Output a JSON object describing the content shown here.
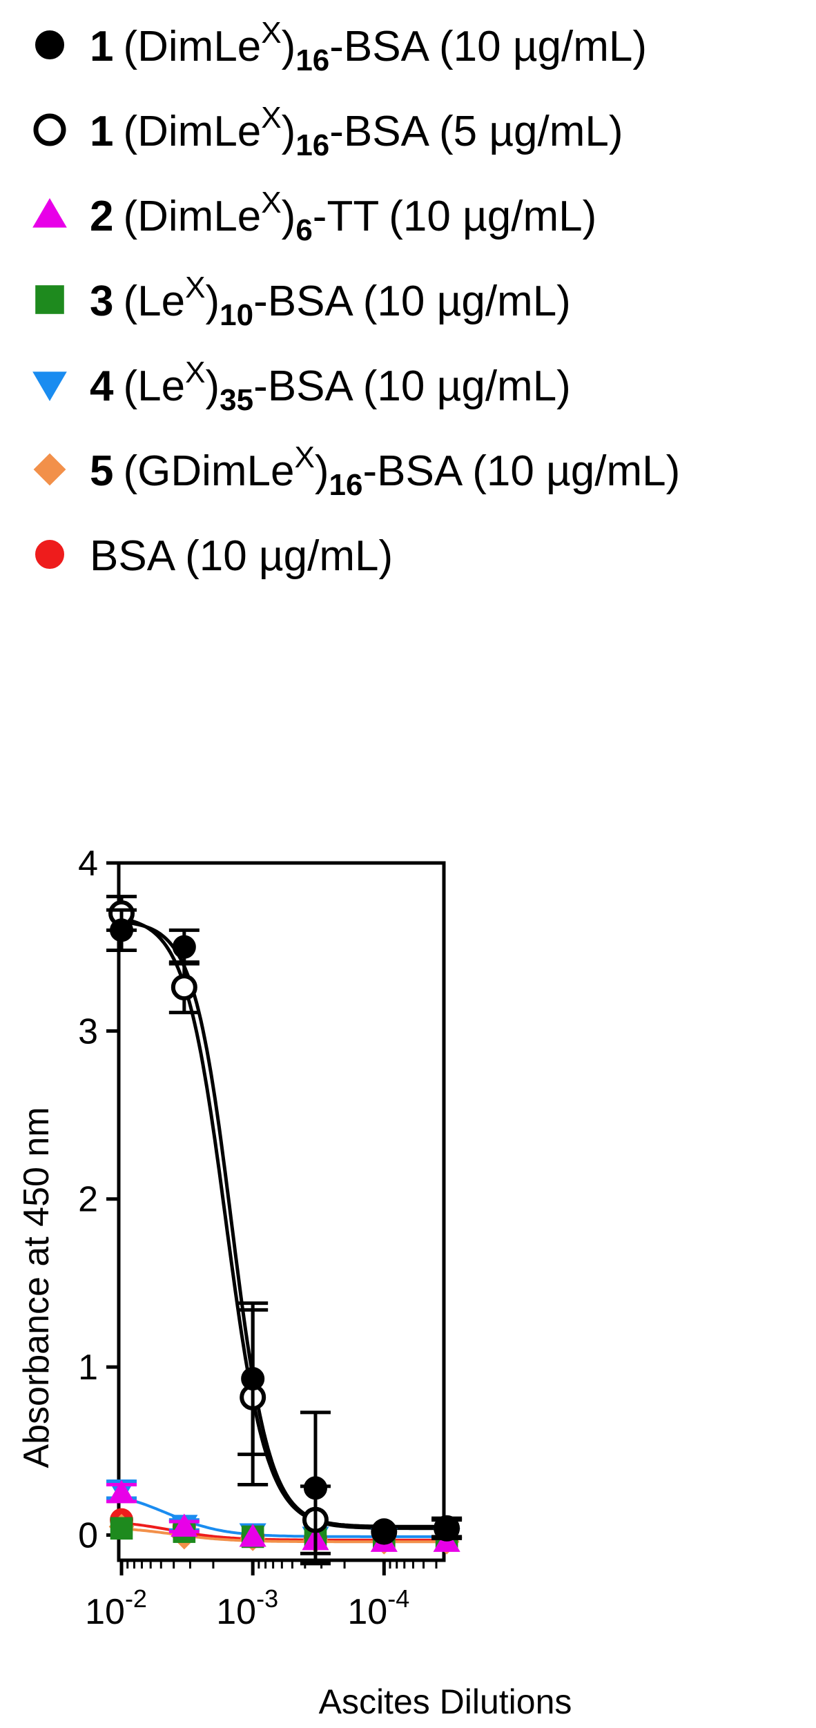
{
  "legend": [
    {
      "num": "1",
      "pre": "(DimLe",
      "sup": "X",
      "post": ")",
      "sub": "16",
      "tail": "-BSA",
      "conc": "(10 µg/mL)",
      "marker": "circle",
      "fill": "#000000",
      "stroke": "#000000"
    },
    {
      "num": "1",
      "pre": "(DimLe",
      "sup": "X",
      "post": ")",
      "sub": "16",
      "tail": "-BSA",
      "conc": "(5 µg/mL)",
      "marker": "circle",
      "fill": "#ffffff",
      "stroke": "#000000"
    },
    {
      "num": "2",
      "pre": "(DimLe",
      "sup": "X",
      "post": ")",
      "sub": "6",
      "tail": "-TT",
      "conc": "(10 µg/mL)",
      "marker": "triangle-up",
      "fill": "#e800e8",
      "stroke": "#e800e8"
    },
    {
      "num": "3",
      "pre": "(Le",
      "sup": "X",
      "post": ")",
      "sub": "10",
      "tail": "-BSA",
      "conc": "(10 µg/mL)",
      "marker": "square",
      "fill": "#1e8a1e",
      "stroke": "#1e8a1e"
    },
    {
      "num": "4",
      "pre": "(Le",
      "sup": "X",
      "post": ")",
      "sub": "35",
      "tail": "-BSA",
      "conc": "(10 µg/mL)",
      "marker": "triangle-down",
      "fill": "#1a8cf0",
      "stroke": "#1a8cf0"
    },
    {
      "num": "5",
      "pre": "(GDimLe",
      "sup": "X",
      "post": ")",
      "sub": "16",
      "tail": "-BSA",
      "conc": "(10 µg/mL)",
      "marker": "diamond",
      "fill": "#f2904a",
      "stroke": "#f2904a"
    },
    {
      "num": "",
      "pre": "BSA",
      "sup": "",
      "post": "",
      "sub": "",
      "tail": "",
      "conc": "(10 µg/mL)",
      "marker": "circle",
      "fill": "#ee1c1c",
      "stroke": "#ee1c1c"
    }
  ],
  "chart_data": {
    "type": "scatter",
    "xlabel": "Ascites Dilutions",
    "ylabel": "Absorbance at 450 nm",
    "x_scale": "log",
    "x_reversed": true,
    "xlim": [
      0.0105,
      3.5e-05
    ],
    "ylim": [
      -0.15,
      4
    ],
    "y_ticks": [
      0,
      1,
      2,
      3,
      4
    ],
    "y_tick_labels": [
      "0",
      "1",
      "2",
      "3",
      "4"
    ],
    "x_ticks": [
      0.01,
      0.001,
      0.0001
    ],
    "x_tick_labels": [
      {
        "base": "10",
        "exp": "-2"
      },
      {
        "base": "10",
        "exp": "-3"
      },
      {
        "base": "10",
        "exp": "-4"
      }
    ],
    "x": [
      0.01,
      0.00333,
      0.001,
      0.000333,
      0.0001,
      3.33e-05
    ],
    "series": [
      {
        "label_index": 0,
        "color": "#000000",
        "marker": "circle",
        "fill": "#000000",
        "values": [
          3.6,
          3.5,
          0.93,
          0.28,
          0.03,
          0.04
        ],
        "errors": [
          0.12,
          0.1,
          0.45,
          0.45,
          0.0,
          0.06
        ]
      },
      {
        "label_index": 1,
        "color": "#000000",
        "marker": "circle",
        "fill": "#ffffff",
        "values": [
          3.7,
          3.26,
          0.82,
          0.09,
          0.02,
          0.04
        ],
        "errors": [
          0.1,
          0.15,
          0.52,
          0.2,
          0.0,
          0.05
        ]
      },
      {
        "label_index": 2,
        "color": "#e800e8",
        "marker": "triangle-up",
        "fill": "#e800e8",
        "values": [
          0.25,
          0.05,
          -0.01,
          -0.03,
          -0.04,
          -0.04
        ],
        "errors": [
          0.05,
          0.03,
          0.0,
          0.0,
          0.0,
          0.0
        ]
      },
      {
        "label_index": 3,
        "color": "#1e8a1e",
        "marker": "square",
        "fill": "#1e8a1e",
        "values": [
          0.04,
          0.02,
          -0.01,
          -0.02,
          -0.03,
          -0.03
        ],
        "errors": [
          0.0,
          0.0,
          0.0,
          0.0,
          0.0,
          0.0
        ]
      },
      {
        "label_index": 4,
        "color": "#1a8cf0",
        "marker": "triangle-down",
        "fill": "#1a8cf0",
        "values": [
          0.27,
          0.06,
          0.01,
          -0.01,
          -0.02,
          -0.02
        ],
        "errors": [
          0.05,
          0.03,
          0.0,
          0.0,
          0.0,
          0.0
        ]
      },
      {
        "label_index": 5,
        "color": "#f2904a",
        "marker": "diamond",
        "fill": "#f2904a",
        "values": [
          0.05,
          -0.01,
          -0.02,
          -0.03,
          -0.04,
          -0.04
        ],
        "errors": [
          0.0,
          0.0,
          0.0,
          0.0,
          0.0,
          0.0
        ]
      },
      {
        "label_index": 6,
        "color": "#ee1c1c",
        "marker": "circle",
        "fill": "#ee1c1c",
        "values": [
          0.09,
          0.05,
          -0.01,
          -0.02,
          -0.03,
          -0.03
        ],
        "errors": [
          0.0,
          0.0,
          0.0,
          0.0,
          0.0,
          0.0
        ]
      }
    ],
    "fit_curves": [
      {
        "series_index": 0,
        "color": "#000000",
        "top": 3.66,
        "bottom": 0.05,
        "ec50": 0.00145,
        "hill": 3.0
      },
      {
        "series_index": 1,
        "color": "#000000",
        "top": 3.69,
        "bottom": 0.04,
        "ec50": 0.0016,
        "hill": 2.8
      },
      {
        "series_index": 4,
        "color": "#1a8cf0",
        "top": 0.27,
        "bottom": -0.01,
        "ec50": 0.0045,
        "hill": 2.0
      },
      {
        "series_index": 6,
        "color": "#ee1c1c",
        "top": 0.09,
        "bottom": -0.03,
        "ec50": 0.0042,
        "hill": 2.0
      },
      {
        "series_index": 5,
        "color": "#f2904a",
        "top": 0.05,
        "bottom": -0.04,
        "ec50": 0.004,
        "hill": 2.0
      }
    ],
    "grid": false,
    "legend_position": "top"
  }
}
